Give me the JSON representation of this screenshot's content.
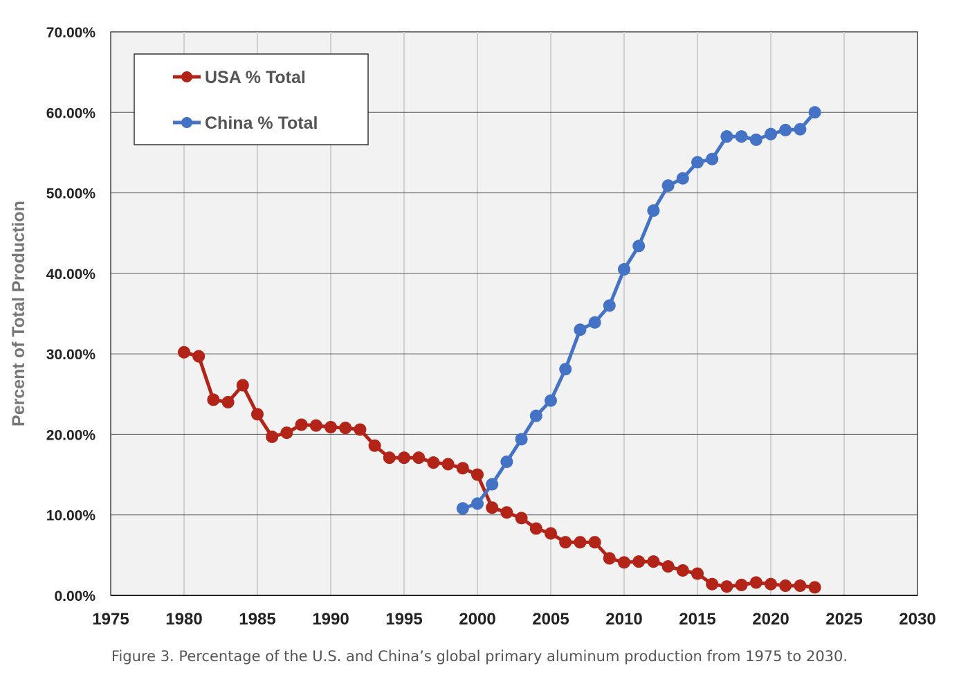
{
  "caption": "Figure 3. Percentage of the U.S. and China’s global primary aluminum production from 1975 to 2030.",
  "chart_data": {
    "type": "line",
    "title": "",
    "xlabel": "",
    "ylabel": "Percent of Total Production",
    "xlim": [
      1975,
      2030
    ],
    "ylim": [
      0,
      70
    ],
    "x_ticks": [
      "1975",
      "1980",
      "1985",
      "1990",
      "1995",
      "2000",
      "2005",
      "2010",
      "2015",
      "2020",
      "2025",
      "2030"
    ],
    "x_tick_values": [
      1975,
      1980,
      1985,
      1990,
      1995,
      2000,
      2005,
      2010,
      2015,
      2020,
      2025,
      2030
    ],
    "y_ticks": [
      "0.00%",
      "10.00%",
      "20.00%",
      "30.00%",
      "40.00%",
      "50.00%",
      "60.00%",
      "70.00%"
    ],
    "y_tick_values": [
      0,
      10,
      20,
      30,
      40,
      50,
      60,
      70
    ],
    "grid": true,
    "legend_position": "top-left",
    "series": [
      {
        "name": "USA % Total",
        "color": "#b22418",
        "x": [
          1980,
          1981,
          1982,
          1983,
          1984,
          1985,
          1986,
          1987,
          1988,
          1989,
          1990,
          1991,
          1992,
          1993,
          1994,
          1995,
          1996,
          1997,
          1998,
          1999,
          2000,
          2001,
          2002,
          2003,
          2004,
          2005,
          2006,
          2007,
          2008,
          2009,
          2010,
          2011,
          2012,
          2013,
          2014,
          2015,
          2016,
          2017,
          2018,
          2019,
          2020,
          2021,
          2022,
          2023
        ],
        "y": [
          30.2,
          29.7,
          24.3,
          24.0,
          26.1,
          22.5,
          19.7,
          20.2,
          21.2,
          21.1,
          20.9,
          20.8,
          20.6,
          18.6,
          17.1,
          17.1,
          17.1,
          16.5,
          16.3,
          15.8,
          15.0,
          10.9,
          10.3,
          9.6,
          8.3,
          7.7,
          6.6,
          6.6,
          6.6,
          4.6,
          4.1,
          4.2,
          4.2,
          3.6,
          3.1,
          2.7,
          1.4,
          1.1,
          1.3,
          1.6,
          1.4,
          1.2,
          1.2,
          1.0
        ]
      },
      {
        "name": "China % Total",
        "color": "#4472c4",
        "x": [
          1999,
          2000,
          2001,
          2002,
          2003,
          2004,
          2005,
          2006,
          2007,
          2008,
          2009,
          2010,
          2011,
          2012,
          2013,
          2014,
          2015,
          2016,
          2017,
          2018,
          2019,
          2020,
          2021,
          2022,
          2023
        ],
        "y": [
          10.8,
          11.4,
          13.8,
          16.6,
          19.4,
          22.3,
          24.2,
          28.1,
          33.0,
          33.9,
          36.0,
          40.5,
          43.4,
          47.8,
          50.9,
          51.8,
          53.8,
          54.2,
          57.0,
          57.0,
          56.6,
          57.3,
          57.8,
          57.9,
          60.0
        ]
      }
    ]
  }
}
